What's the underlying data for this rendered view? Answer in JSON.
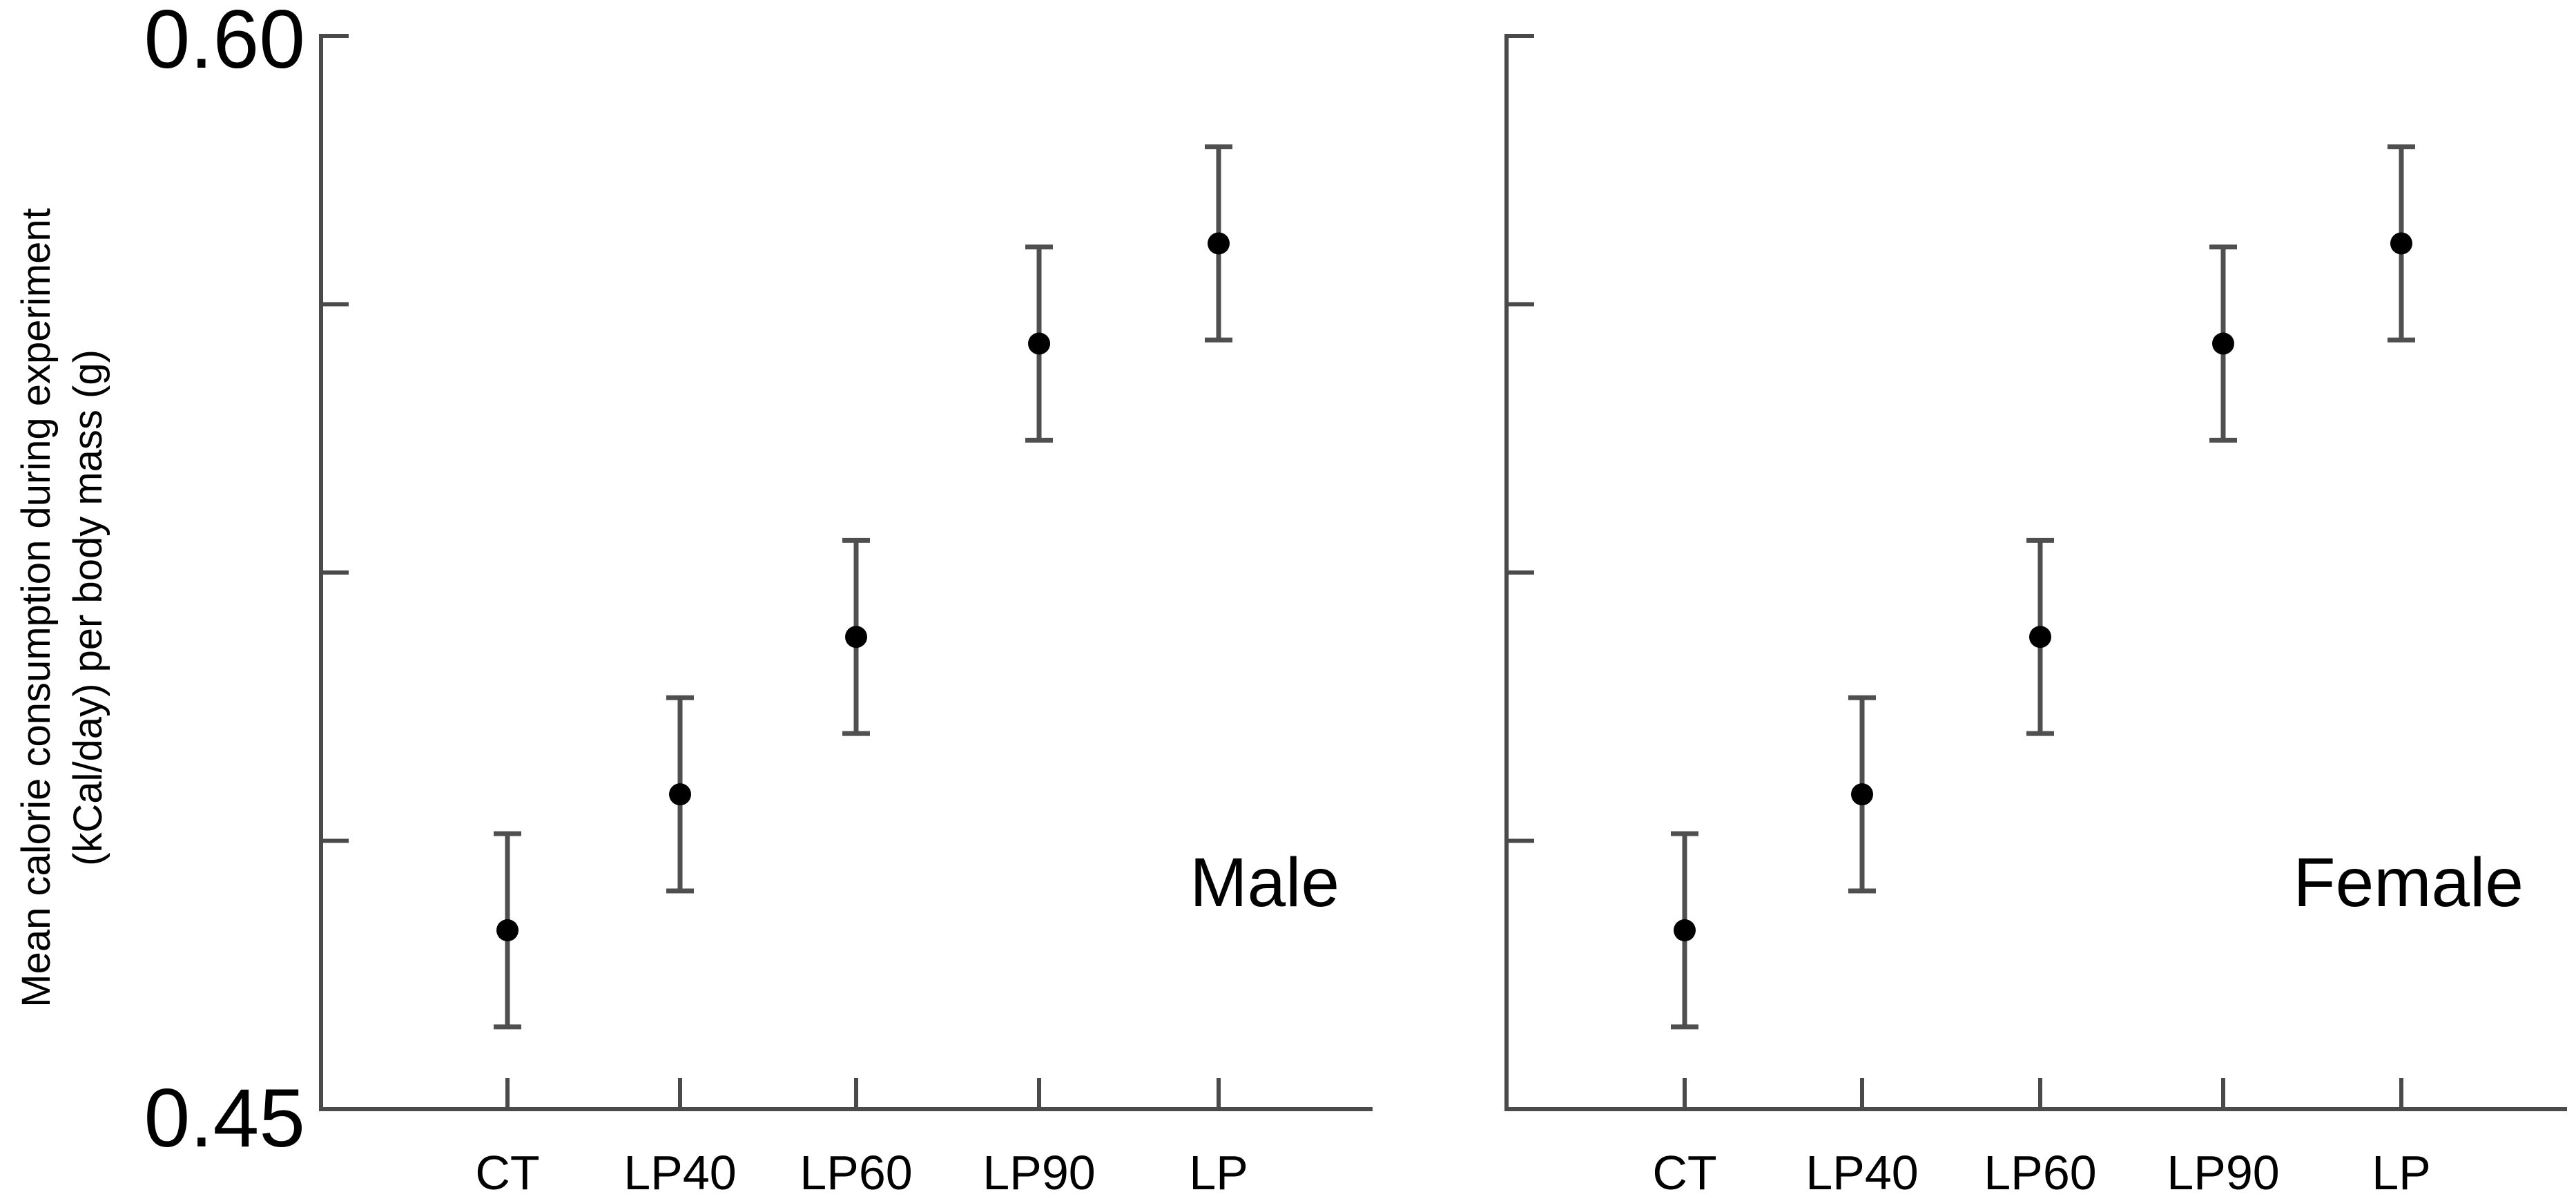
{
  "chart_data": [
    {
      "type": "scatter",
      "panel": "left",
      "title": "",
      "annotation": "Male",
      "ylabel_line1": "Mean calorie consumption during experiment",
      "ylabel_line2": "(kCal/day) per body mass (g)",
      "ylim": [
        0.45,
        0.6
      ],
      "ytick_labels": {
        "top": "0.60",
        "bottom": "0.45"
      },
      "yticks": [
        0.45,
        0.4875,
        0.525,
        0.5625,
        0.6
      ],
      "categories": [
        "CT",
        "LP40",
        "LP60",
        "LP90",
        "LP"
      ],
      "values": [
        0.475,
        0.494,
        0.516,
        0.557,
        0.571
      ],
      "error": [
        0.0135,
        0.0135,
        0.0135,
        0.0135,
        0.0135
      ]
    },
    {
      "type": "scatter",
      "panel": "right",
      "title": "",
      "annotation": "Female",
      "ylim": [
        0.45,
        0.6
      ],
      "yticks": [
        0.45,
        0.4875,
        0.525,
        0.5625,
        0.6
      ],
      "categories": [
        "CT",
        "LP40",
        "LP60",
        "LP90",
        "LP"
      ],
      "values": [
        0.475,
        0.494,
        0.516,
        0.557,
        0.571
      ],
      "error": [
        0.0135,
        0.0135,
        0.0135,
        0.0135,
        0.0135
      ]
    }
  ]
}
